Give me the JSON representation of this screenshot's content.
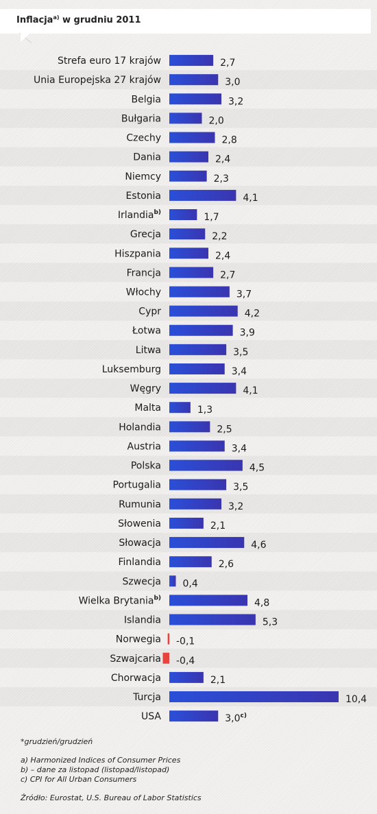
{
  "title_main": "Inflacja",
  "title_sup": "a)",
  "title_rest": " w grudniu 2011",
  "chart_data": {
    "type": "bar",
    "orientation": "horizontal",
    "title": "Inflacja a) w grudniu 2011",
    "categories": [
      "Strefa euro 17 krajów",
      "Unia Europejska 27 krajów",
      "Belgia",
      "Bułgaria",
      "Czechy",
      "Dania",
      "Niemcy",
      "Estonia",
      "Irlandia",
      "Grecja",
      "Hiszpania",
      "Francja",
      "Włochy",
      "Cypr",
      "Łotwa",
      "Litwa",
      "Luksemburg",
      "Węgry",
      "Malta",
      "Holandia",
      "Austria",
      "Polska",
      "Portugalia",
      "Rumunia",
      "Słowenia",
      "Słowacja",
      "Finlandia",
      "Szwecja",
      "Wielka Brytania",
      "Islandia",
      "Norwegia",
      "Szwajcaria",
      "Chorwacja",
      "Turcja",
      "USA"
    ],
    "category_sups": [
      "",
      "",
      "",
      "",
      "",
      "",
      "",
      "",
      "b)",
      "",
      "",
      "",
      "",
      "",
      "",
      "",
      "",
      "",
      "",
      "",
      "",
      "",
      "",
      "",
      "",
      "",
      "",
      "",
      "b)",
      "",
      "",
      "",
      "",
      "",
      ""
    ],
    "values": [
      2.7,
      3.0,
      3.2,
      2.0,
      2.8,
      2.4,
      2.3,
      4.1,
      1.7,
      2.2,
      2.4,
      2.7,
      3.7,
      4.2,
      3.9,
      3.5,
      3.4,
      4.1,
      1.3,
      2.5,
      3.4,
      4.5,
      3.5,
      3.2,
      2.1,
      4.6,
      2.6,
      0.4,
      4.8,
      5.3,
      -0.1,
      -0.4,
      2.1,
      10.4,
      3.0
    ],
    "value_labels": [
      "2,7",
      "3,0",
      "3,2",
      "2,0",
      "2,8",
      "2,4",
      "2,3",
      "4,1",
      "1,7",
      "2,2",
      "2,4",
      "2,7",
      "3,7",
      "4,2",
      "3,9",
      "3,5",
      "3,4",
      "4,1",
      "1,3",
      "2,5",
      "3,4",
      "4,5",
      "3,5",
      "3,2",
      "2,1",
      "4,6",
      "2,6",
      "0,4",
      "4,8",
      "5,3",
      "-0,1",
      "-0,4",
      "2,1",
      "10,4",
      "3,0"
    ],
    "value_sups": [
      "",
      "",
      "",
      "",
      "",
      "",
      "",
      "",
      "",
      "",
      "",
      "",
      "",
      "",
      "",
      "",
      "",
      "",
      "",
      "",
      "",
      "",
      "",
      "",
      "",
      "",
      "",
      "",
      "",
      "",
      "",
      "",
      "",
      "",
      "c)"
    ],
    "xlim": [
      -0.4,
      10.4
    ],
    "colors": {
      "positive": "#3447c9",
      "negative": "#e8423f"
    },
    "grid": false
  },
  "footnotes": {
    "line1": "*grudzień/grudzień",
    "line2": "a) Harmonized Indices of Consumer Prices",
    "line3": "b) – dane za listopad (listopad/listopad)",
    "line4": "c) CPI for All Urban Consumers",
    "line5": "Źródło: Eurostat, U.S. Bureau of Labor Statistics"
  }
}
